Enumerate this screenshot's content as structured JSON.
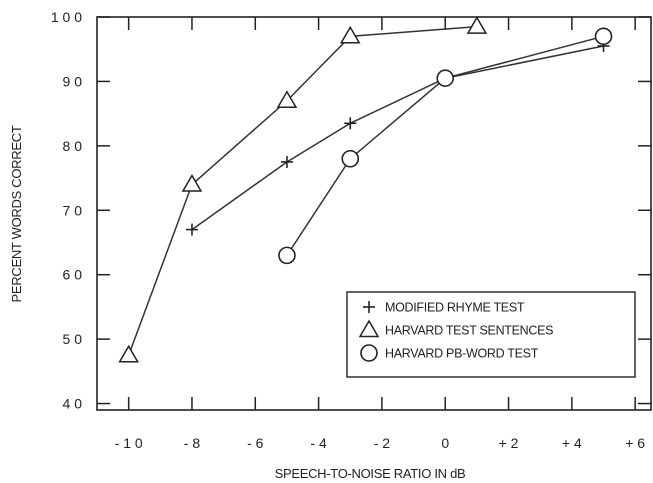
{
  "chart_data": {
    "type": "line",
    "title": "",
    "xlabel": "SPEECH-TO-NOISE RATIO IN dB",
    "ylabel": "PERCENT WORDS CORRECT",
    "xlim": [
      -11,
      6.5
    ],
    "ylim": [
      39,
      100
    ],
    "x_ticks": [
      -10,
      -8,
      -6,
      -4,
      -2,
      0,
      2,
      4,
      6
    ],
    "x_tick_labels": [
      "- 1 0",
      "- 8",
      "- 6",
      "- 4",
      "- 2",
      "0",
      "+ 2",
      "+ 4",
      "+ 6"
    ],
    "y_ticks": [
      40,
      50,
      60,
      70,
      80,
      90,
      100
    ],
    "y_tick_labels": [
      "4 0",
      "5 0",
      "6 0",
      "7 0",
      "8 0",
      "9 0",
      "1 0 0"
    ],
    "grid": false,
    "legend_position": "bottom-right",
    "series": [
      {
        "name": "MODIFIED RHYME TEST",
        "marker": "plus",
        "x": [
          -8,
          -5,
          -3,
          0,
          5
        ],
        "y": [
          67,
          77.5,
          83.5,
          90.5,
          95.5
        ]
      },
      {
        "name": "HARVARD TEST SENTENCES",
        "marker": "triangle",
        "x": [
          -10,
          -8,
          -5,
          -3,
          1
        ],
        "y": [
          47.5,
          74,
          87,
          97,
          98.5
        ]
      },
      {
        "name": "HARVARD PB-WORD TEST",
        "marker": "circle",
        "x": [
          -5,
          -3,
          0,
          5
        ],
        "y": [
          63,
          78,
          90.5,
          97
        ]
      }
    ]
  }
}
